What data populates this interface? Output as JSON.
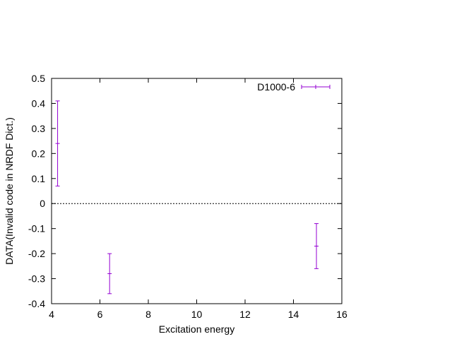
{
  "chart_data": {
    "type": "scatter",
    "title": "",
    "xlabel": "Excitation energy",
    "ylabel": "DATA(Invalid code in NRDF Dict.)",
    "xlim": [
      4,
      16
    ],
    "ylim": [
      -0.4,
      0.5
    ],
    "x_ticks": [
      4,
      6,
      8,
      10,
      12,
      14,
      16
    ],
    "y_ticks": [
      -0.4,
      -0.3,
      -0.2,
      -0.1,
      0,
      0.1,
      0.2,
      0.3,
      0.4,
      0.5
    ],
    "x_tick_labels": [
      "4",
      "6",
      "8",
      "10",
      "12",
      "14",
      "16"
    ],
    "y_tick_labels": [
      "-0.4",
      "-0.3",
      "-0.2",
      "-0.1",
      "0",
      "0.1",
      "0.2",
      "0.3",
      "0.4",
      "0.5"
    ],
    "zero_line": true,
    "grid": false,
    "legend_position": "top-right",
    "series": [
      {
        "name": "D1000-6",
        "color": "#9400d3",
        "points": [
          {
            "x": 4.25,
            "y": 0.24,
            "yerr_low": 0.07,
            "yerr_high": 0.41
          },
          {
            "x": 6.4,
            "y": -0.28,
            "yerr_low": -0.36,
            "yerr_high": -0.2
          },
          {
            "x": 14.95,
            "y": -0.17,
            "yerr_low": -0.26,
            "yerr_high": -0.08
          }
        ]
      }
    ]
  }
}
